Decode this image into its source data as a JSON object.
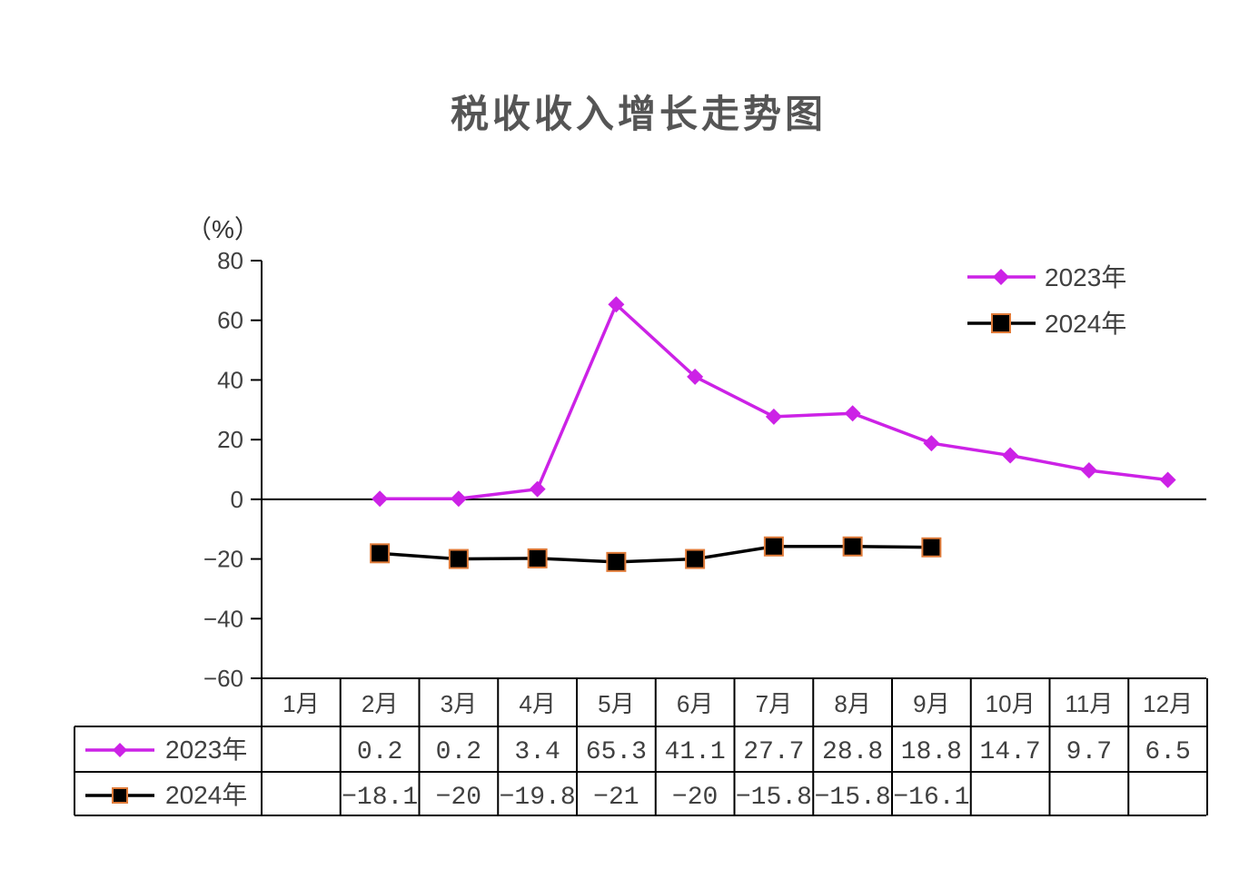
{
  "chart_data": {
    "type": "line",
    "title": "税收收入增长走势图",
    "ylabel": "（%）",
    "ylim": [
      -60,
      80
    ],
    "yticks": [
      "80",
      "60",
      "40",
      "20",
      "0",
      "−20",
      "−40",
      "−60"
    ],
    "ytick_values": [
      80,
      60,
      40,
      20,
      0,
      -20,
      -40,
      -60
    ],
    "categories": [
      "1月",
      "2月",
      "3月",
      "4月",
      "5月",
      "6月",
      "7月",
      "8月",
      "9月",
      "10月",
      "11月",
      "12月"
    ],
    "series": [
      {
        "name": "2023年",
        "color": "#cc22e6",
        "marker": "diamond",
        "values": [
          null,
          0.2,
          0.2,
          3.4,
          65.3,
          41.1,
          27.7,
          28.8,
          18.8,
          14.7,
          9.7,
          6.5
        ],
        "labels": [
          "",
          "0.2",
          "0.2",
          "3.4",
          "65.3",
          "41.1",
          "27.7",
          "28.8",
          "18.8",
          "14.7",
          "9.7",
          "6.5"
        ]
      },
      {
        "name": "2024年",
        "color": "#000000",
        "marker_edge": "#e07b39",
        "marker": "square",
        "values": [
          null,
          -18.1,
          -20,
          -19.8,
          -21,
          -20,
          -15.8,
          -15.8,
          -16.1,
          null,
          null,
          null
        ],
        "labels": [
          "",
          "−18.1",
          "−20",
          "−19.8",
          "−21",
          "−20",
          "−15.8",
          "−15.8",
          "−16.1",
          "",
          "",
          ""
        ]
      }
    ],
    "legend": "top-right",
    "grid": false
  }
}
